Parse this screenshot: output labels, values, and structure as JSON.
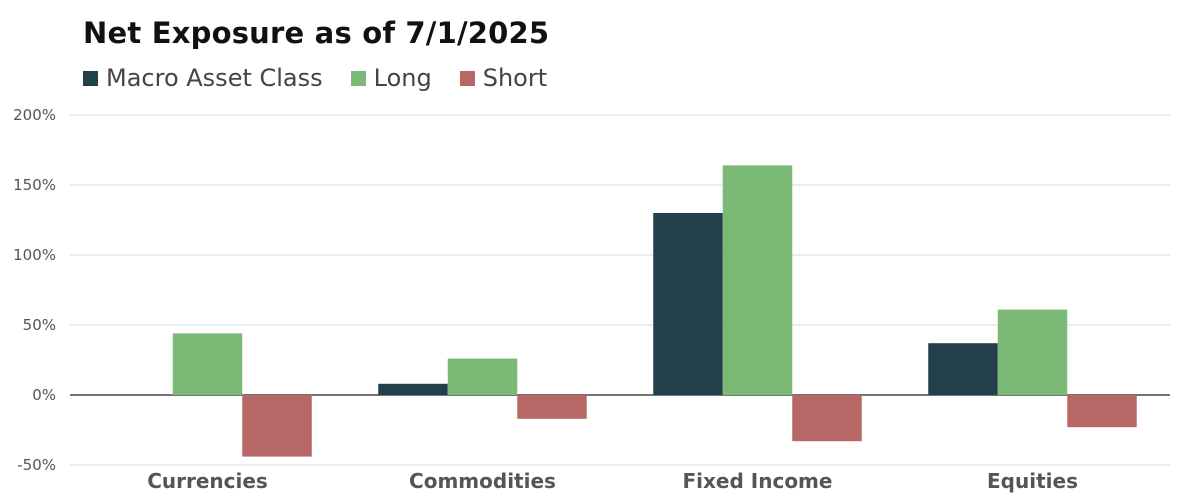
{
  "chart_data": {
    "type": "bar",
    "title": "Net Exposure as of 7/1/2025",
    "categories": [
      "Currencies",
      "Commodities",
      "Fixed Income",
      "Equities"
    ],
    "series": [
      {
        "name": "Macro Asset Class",
        "color": "#233f4b",
        "values": [
          0,
          8,
          130,
          37
        ]
      },
      {
        "name": "Long",
        "color": "#7bb977",
        "values": [
          44,
          26,
          164,
          61
        ]
      },
      {
        "name": "Short",
        "color": "#b76866",
        "values": [
          -44,
          -17,
          -33,
          -23
        ]
      }
    ],
    "ylim": [
      -50,
      200
    ],
    "yticks": [
      -50,
      0,
      50,
      100,
      150,
      200
    ],
    "ytick_labels": [
      "-50%",
      "0%",
      "50%",
      "100%",
      "150%",
      "200%"
    ],
    "legend_position": "top-left",
    "grid": true
  }
}
